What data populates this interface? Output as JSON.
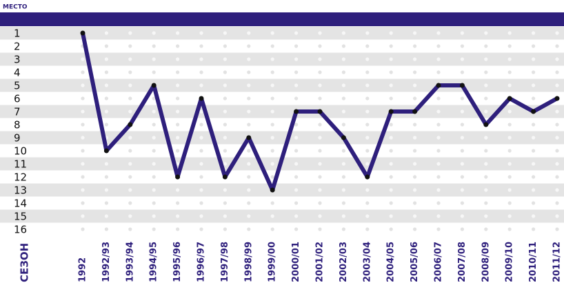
{
  "chart_data": {
    "type": "line",
    "y_label": "МЕСТО",
    "x_label": "СЕЗОН",
    "categories": [
      "1992",
      "1992/93",
      "1993/94",
      "1994/95",
      "1995/96",
      "1996/97",
      "1997/98",
      "1998/99",
      "1999/00",
      "2000/01",
      "2001/02",
      "2002/03",
      "2003/04",
      "2004/05",
      "2005/06",
      "2006/07",
      "2007/08",
      "2008/09",
      "2009/10",
      "2010/11",
      "2011/12"
    ],
    "values": [
      1,
      10,
      8,
      5,
      12,
      6,
      12,
      9,
      13,
      7,
      7,
      9,
      12,
      7,
      7,
      5,
      5,
      8,
      6,
      7,
      6
    ],
    "color": "#2e1f7c",
    "ylim": [
      1,
      16
    ],
    "y_inverted": true,
    "yticks": [
      1,
      2,
      3,
      4,
      5,
      6,
      7,
      8,
      9,
      10,
      11,
      12,
      13,
      14,
      15,
      16
    ],
    "grid": true
  }
}
